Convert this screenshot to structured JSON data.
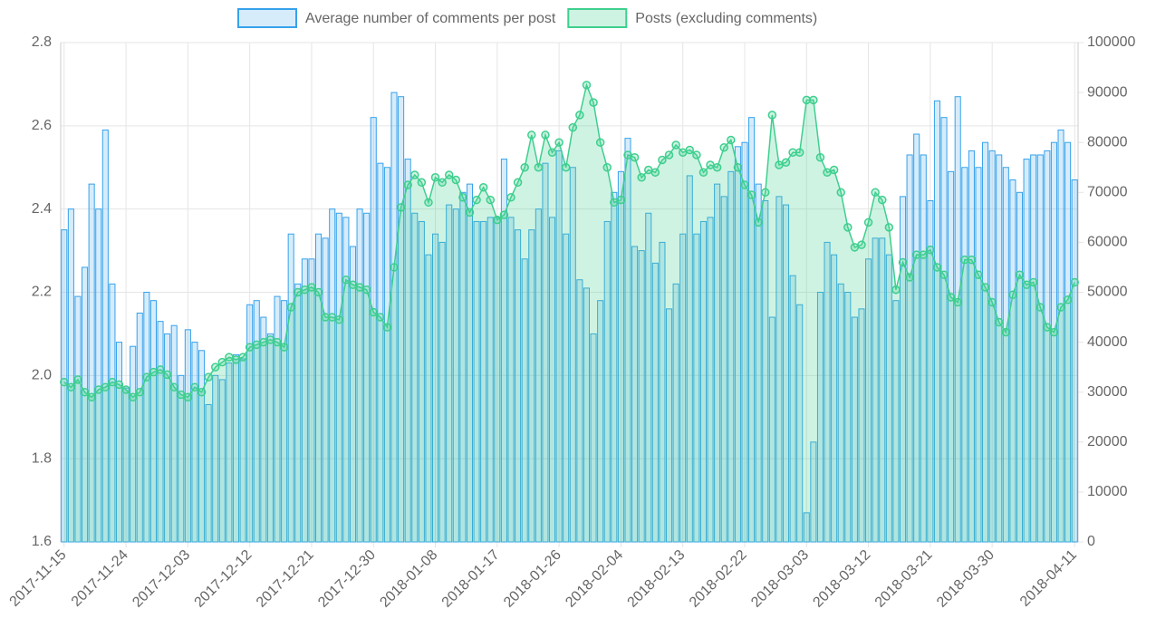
{
  "chart_data": {
    "type": "bar-line",
    "categories": [
      "2017-11-15",
      null,
      null,
      null,
      null,
      null,
      null,
      null,
      null,
      "2017-11-24",
      null,
      null,
      null,
      null,
      null,
      null,
      null,
      null,
      "2017-12-03",
      null,
      null,
      null,
      null,
      null,
      null,
      null,
      null,
      "2017-12-12",
      null,
      null,
      null,
      null,
      null,
      null,
      null,
      null,
      "2017-12-21",
      null,
      null,
      null,
      null,
      null,
      null,
      null,
      null,
      "2017-12-30",
      null,
      null,
      null,
      null,
      null,
      null,
      null,
      null,
      "2018-01-08",
      null,
      null,
      null,
      null,
      null,
      null,
      null,
      null,
      "2018-01-17",
      null,
      null,
      null,
      null,
      null,
      null,
      null,
      null,
      "2018-01-26",
      null,
      null,
      null,
      null,
      null,
      null,
      null,
      null,
      "2018-02-04",
      null,
      null,
      null,
      null,
      null,
      null,
      null,
      null,
      "2018-02-13",
      null,
      null,
      null,
      null,
      null,
      null,
      null,
      null,
      "2018-02-22",
      null,
      null,
      null,
      null,
      null,
      null,
      null,
      null,
      "2018-03-03",
      null,
      null,
      null,
      null,
      null,
      null,
      null,
      null,
      "2018-03-12",
      null,
      null,
      null,
      null,
      null,
      null,
      null,
      null,
      "2018-03-21",
      null,
      null,
      null,
      null,
      null,
      null,
      null,
      null,
      "2018-03-30",
      null,
      null,
      null,
      null,
      null,
      null,
      null,
      null,
      null,
      null,
      null,
      "2018-04-11"
    ],
    "series": [
      {
        "name": "Average number of comments per post",
        "type": "bar",
        "axis": "y",
        "color": "#36a2eb",
        "fill": "rgba(54,162,235,0.2)",
        "values": [
          2.35,
          2.4,
          2.19,
          2.26,
          2.46,
          2.4,
          2.59,
          2.22,
          2.08,
          1.97,
          2.07,
          2.15,
          2.2,
          2.18,
          2.13,
          2.1,
          2.12,
          2.0,
          2.11,
          2.08,
          2.06,
          1.93,
          2.0,
          1.99,
          2.03,
          2.05,
          2.04,
          2.17,
          2.18,
          2.14,
          2.1,
          2.19,
          2.18,
          2.34,
          2.22,
          2.28,
          2.28,
          2.34,
          2.33,
          2.4,
          2.39,
          2.38,
          2.31,
          2.4,
          2.39,
          2.62,
          2.51,
          2.5,
          2.68,
          2.67,
          2.52,
          2.39,
          2.37,
          2.29,
          2.34,
          2.32,
          2.41,
          2.4,
          2.44,
          2.46,
          2.37,
          2.37,
          2.38,
          2.38,
          2.52,
          2.38,
          2.35,
          2.28,
          2.35,
          2.4,
          2.51,
          2.38,
          2.54,
          2.34,
          2.5,
          2.23,
          2.21,
          2.1,
          2.18,
          2.37,
          2.44,
          2.49,
          2.57,
          2.31,
          2.3,
          2.39,
          2.27,
          2.32,
          2.16,
          2.22,
          2.34,
          2.48,
          2.34,
          2.37,
          2.38,
          2.46,
          2.43,
          2.49,
          2.55,
          2.56,
          2.62,
          2.46,
          2.42,
          2.14,
          2.43,
          2.41,
          2.24,
          2.17,
          1.67,
          1.84,
          2.2,
          2.32,
          2.29,
          2.22,
          2.2,
          2.14,
          2.16,
          2.28,
          2.33,
          2.33,
          2.29,
          2.18,
          2.43,
          2.53,
          2.58,
          2.53,
          2.42,
          2.66,
          2.62,
          2.49,
          2.67,
          2.5,
          2.54,
          2.5,
          2.56,
          2.54,
          2.53,
          2.5,
          2.47,
          2.44,
          2.52,
          2.53,
          2.53,
          2.54,
          2.56,
          2.59,
          2.56,
          2.47
        ]
      },
      {
        "name": "Posts (excluding comments)",
        "type": "line",
        "axis": "y2",
        "color": "#3ecf8e",
        "fill": "rgba(62,207,142,0.25)",
        "values": [
          32000,
          31000,
          32500,
          30000,
          29000,
          30500,
          31000,
          32000,
          31500,
          30500,
          29000,
          30000,
          33000,
          34000,
          34500,
          33500,
          31000,
          29500,
          29000,
          31000,
          30000,
          33000,
          35000,
          36000,
          37000,
          36500,
          37000,
          39000,
          39500,
          40000,
          40500,
          40000,
          39000,
          47000,
          50000,
          50500,
          51000,
          50000,
          45000,
          45000,
          44500,
          52500,
          51500,
          51000,
          50500,
          46000,
          45000,
          43000,
          55000,
          67000,
          71500,
          73500,
          72000,
          68000,
          73000,
          72000,
          73500,
          72500,
          69000,
          66000,
          68500,
          71000,
          68500,
          64500,
          65500,
          69000,
          72000,
          75000,
          81500,
          75000,
          81500,
          78000,
          80000,
          75000,
          83000,
          85500,
          91500,
          88000,
          80000,
          75000,
          68000,
          68500,
          77500,
          77000,
          73000,
          74500,
          74000,
          76500,
          77500,
          79500,
          78000,
          78500,
          77500,
          74000,
          75500,
          75000,
          79000,
          80500,
          75000,
          71500,
          69500,
          64000,
          70000,
          85500,
          75500,
          76000,
          78000,
          78000,
          88500,
          88500,
          77000,
          74000,
          74500,
          70000,
          63000,
          59000,
          59500,
          64000,
          70000,
          68500,
          63000,
          50500,
          56000,
          53000,
          57500,
          57500,
          58500,
          55000,
          53500,
          49000,
          48000,
          56500,
          56500,
          53500,
          51000,
          48000,
          44000,
          42000,
          49500,
          53500,
          51500,
          52000,
          47000,
          43000,
          42000,
          47000,
          48500,
          52000
        ]
      }
    ],
    "ylim": [
      1.6,
      2.8
    ],
    "yticks": [
      1.6,
      1.8,
      {
        "value": 2,
        "label": "2.0"
      },
      2.2,
      2.4,
      2.6,
      2.8
    ],
    "y2lim": [
      0,
      100000
    ],
    "y2ticks": [
      0,
      10000,
      20000,
      30000,
      40000,
      50000,
      60000,
      70000,
      80000,
      90000,
      100000
    ],
    "grid": true,
    "legend": "top"
  }
}
